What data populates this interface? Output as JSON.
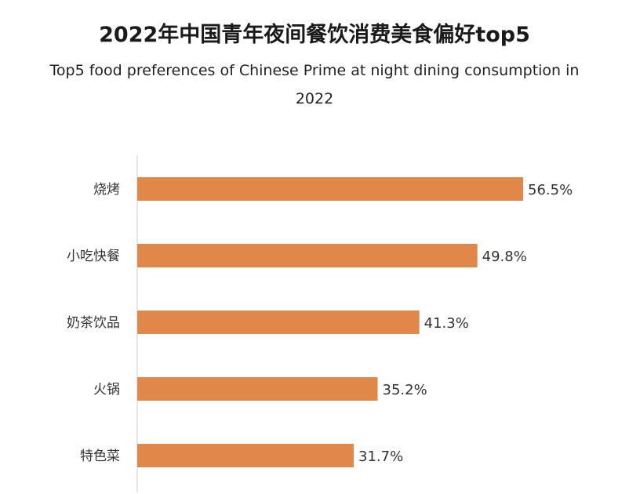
{
  "title": "2022年中国青年夜间餐饮消费美食偏好top5",
  "subtitle": "Top5 food preferences of Chinese Prime at night dining consumption in 2022",
  "colors": {
    "bar": "#E0874A",
    "axis": "#cccccc",
    "text": "#333333"
  },
  "chart_data": {
    "type": "bar",
    "orientation": "horizontal",
    "categories": [
      "烧烤",
      "小吃快餐",
      "奶茶饮品",
      "火锅",
      "特色菜"
    ],
    "values": [
      56.5,
      49.8,
      41.3,
      35.2,
      31.7
    ],
    "value_labels": [
      "56.5%",
      "49.8%",
      "41.3%",
      "35.2%",
      "31.7%"
    ],
    "title": "2022年中国青年夜间餐饮消费美食偏好top5",
    "subtitle": "Top5 food preferences of Chinese Prime at night dining consumption in 2022",
    "unit": "%",
    "xlim": [
      0,
      100
    ],
    "grid": false,
    "legend": "none"
  }
}
